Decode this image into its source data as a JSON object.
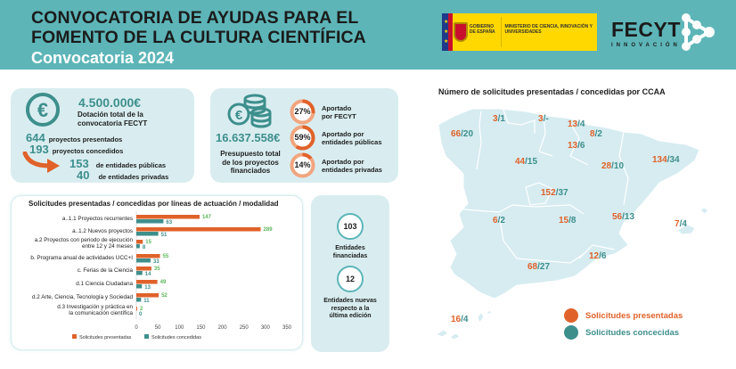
{
  "header": {
    "title_line1": "CONVOCATORIA DE AYUDAS PARA EL",
    "title_line2": "FOMENTO DE LA CULTURA CIENTÍFICA",
    "subtitle": "Convocatoria 2024",
    "gov_logo_text": "GOBIERNO DE ESPAÑA",
    "ministry_text": "MINISTERIO DE CIENCIA, INNOVACIÓN Y UNIVERSIDADES",
    "fecyt_name": "FECYT",
    "fecyt_sub": "INNOVACIÓN"
  },
  "colors": {
    "teal": "#5db5b8",
    "teal_dark": "#3d8f8c",
    "orange": "#e0622a",
    "card_bg": "#d9edf0",
    "green_label": "#5cb85c"
  },
  "funding": {
    "icon": "euro-circle-icon",
    "total": "4.500.000€",
    "total_label_1": "Dotación total de la",
    "total_label_2": "convocatoria FECYT",
    "presented_num": "644",
    "presented_label": "proyectos presentados",
    "granted_num": "193",
    "granted_label": "proyectos concedidos",
    "public_num": "153",
    "public_label": "de entidades públicas",
    "private_num": "40",
    "private_label": "de entidades privadas"
  },
  "budget": {
    "icon": "coins-icon",
    "total": "16.637.558€",
    "label": "Presupuesto total de los proyectos financiados",
    "shares": [
      {
        "pct": 27,
        "pct_label": "27%",
        "line1": "Aportado",
        "line2": "por FECYT"
      },
      {
        "pct": 59,
        "pct_label": "59%",
        "line1": "Aportado por",
        "line2": "entidades públicas"
      },
      {
        "pct": 14,
        "pct_label": "14%",
        "line1": "Aportado por",
        "line2": "entidades privadas"
      }
    ]
  },
  "entities": {
    "funded_num": "103",
    "funded_label_1": "Entidades",
    "funded_label_2": "financiadas",
    "new_num": "12",
    "new_label_1": "Entidades nuevas",
    "new_label_2": "respecto a la",
    "new_label_3": "última edición"
  },
  "chart_data": {
    "type": "bar",
    "orientation": "horizontal",
    "title": "Solicitudes presentadas / concedidas por líneas de actuación / modalidad",
    "categories": [
      [
        "a..1.1 Proyectos recurrentes"
      ],
      [
        "a..1.2 Nuevos proyectos"
      ],
      [
        "a.2 Proyectos con periodo de ejecución",
        "entre 12 y 24 meses"
      ],
      [
        "b. Programa anual de actividades UCC+I"
      ],
      [
        "c. Ferias de la Ciencia"
      ],
      [
        "d.1 Ciencia Ciudadana"
      ],
      [
        "d.2 Arte, Ciencia, Tecnología y Sociedad"
      ],
      [
        "d.3 Investigación y práctica en",
        "la comunicación científica"
      ]
    ],
    "series": [
      {
        "name": "Solicitudes presentadas",
        "color": "#e0622a",
        "label_color": "#5cb85c",
        "values": [
          147,
          289,
          15,
          55,
          35,
          49,
          52,
          2
        ]
      },
      {
        "name": "Solicitudes concedidas",
        "color": "#3d8f8c",
        "label_color": "#3d8f8c",
        "values": [
          63,
          51,
          8,
          33,
          14,
          13,
          11,
          0
        ]
      }
    ],
    "xlim": [
      0,
      350
    ],
    "xticks": [
      0,
      50,
      100,
      150,
      200,
      250,
      300,
      350
    ],
    "xlabel": "",
    "ylabel": "",
    "grid": false,
    "legend": "bottom"
  },
  "map": {
    "title": "Número de solicitudes presentadas / concedidas por CCAA",
    "regions": [
      {
        "name": "Galicia",
        "presented": "66",
        "granted": "20"
      },
      {
        "name": "Asturias",
        "presented": "3",
        "granted": "1"
      },
      {
        "name": "Cantabria",
        "presented": "3",
        "granted": "-"
      },
      {
        "name": "País Vasco",
        "presented": "13",
        "granted": "4"
      },
      {
        "name": "Navarra",
        "presented": "8",
        "granted": "2"
      },
      {
        "name": "La Rioja",
        "presented": "13",
        "granted": "6"
      },
      {
        "name": "Castilla y León",
        "presented": "44",
        "granted": "15"
      },
      {
        "name": "Aragón",
        "presented": "28",
        "granted": "10"
      },
      {
        "name": "Cataluña",
        "presented": "134",
        "granted": "34"
      },
      {
        "name": "Madrid",
        "presented": "152",
        "granted": "37"
      },
      {
        "name": "Extremadura",
        "presented": "6",
        "granted": "2"
      },
      {
        "name": "Castilla-La Mancha",
        "presented": "15",
        "granted": "8"
      },
      {
        "name": "Comunidad Valenciana",
        "presented": "56",
        "granted": "13"
      },
      {
        "name": "Islas Baleares",
        "presented": "7",
        "granted": "4"
      },
      {
        "name": "Murcia",
        "presented": "12",
        "granted": "6"
      },
      {
        "name": "Andalucía",
        "presented": "68",
        "granted": "27"
      },
      {
        "name": "Canarias",
        "presented": "16",
        "granted": "4"
      }
    ],
    "legend": [
      {
        "label": "Solicitudes presentadas",
        "color": "#e0622a"
      },
      {
        "label": "Solicitudes concecidas",
        "color": "#3d8f8c"
      }
    ]
  }
}
